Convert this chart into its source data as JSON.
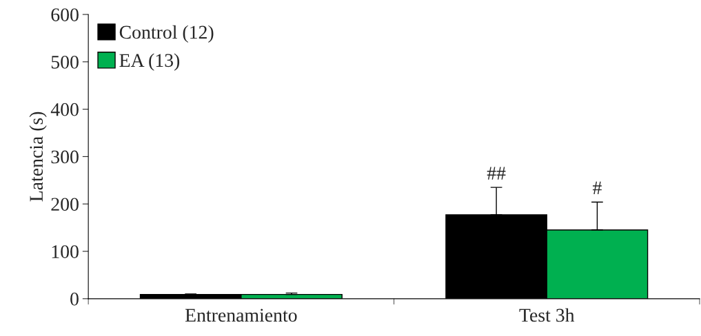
{
  "chart_data": {
    "type": "bar",
    "ylabel": "Latencia (s)",
    "categories": [
      "Entrenamiento",
      "Test 3h"
    ],
    "series": [
      {
        "name": "Control (12)",
        "color": "#000000",
        "values": [
          9,
          177
        ],
        "errors": [
          [
            9,
            10
          ],
          [
            177,
            235
          ]
        ]
      },
      {
        "name": "EA (13)",
        "color": "#00b050",
        "values": [
          9,
          145
        ],
        "errors": [
          [
            9,
            12
          ],
          [
            145,
            204
          ]
        ]
      }
    ],
    "ylim": [
      0,
      600
    ],
    "yticks": [
      0,
      100,
      200,
      300,
      400,
      500,
      600
    ],
    "annotations": [
      "##",
      "#"
    ],
    "legend": "top left",
    "grid": false
  }
}
